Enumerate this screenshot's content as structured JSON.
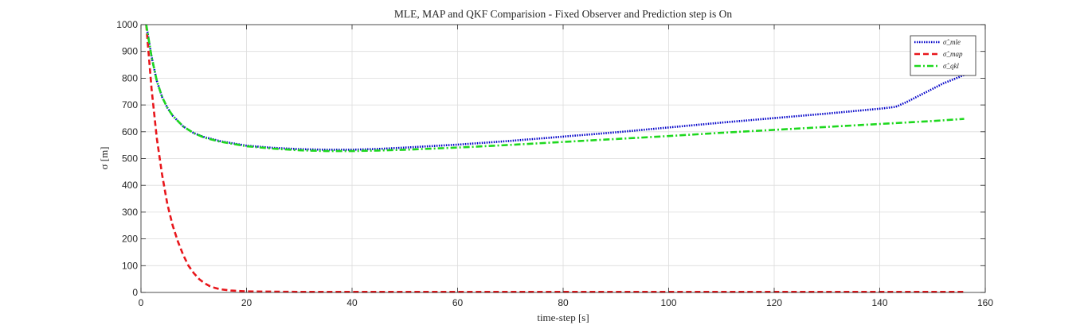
{
  "chart_data": {
    "type": "line",
    "title": "MLE, MAP and QKF Comparision - Fixed Observer and Prediction step is On",
    "xlabel": "time-step [s]",
    "ylabel": "σ [m]",
    "xlim": [
      0,
      160
    ],
    "ylim": [
      0,
      1000
    ],
    "xticks": [
      "0",
      "20",
      "40",
      "60",
      "80",
      "100",
      "120",
      "140",
      "160"
    ],
    "yticks": [
      "0",
      "100",
      "200",
      "300",
      "400",
      "500",
      "600",
      "700",
      "800",
      "900",
      "1000"
    ],
    "grid": true,
    "legend_position": "top-right",
    "series": [
      {
        "name": "σ̂_mle",
        "color": "#0000c8",
        "style": "dotted",
        "x": [
          1,
          2,
          3,
          4,
          5,
          6,
          8,
          10,
          12,
          15,
          20,
          25,
          30,
          35,
          40,
          45,
          50,
          60,
          70,
          80,
          90,
          100,
          110,
          120,
          130,
          140,
          143,
          145,
          148,
          152,
          156
        ],
        "y": [
          1000,
          880,
          790,
          730,
          690,
          660,
          620,
          595,
          580,
          565,
          548,
          540,
          535,
          533,
          533,
          536,
          541,
          552,
          566,
          582,
          598,
          616,
          634,
          651,
          668,
          686,
          693,
          710,
          740,
          780,
          812
        ]
      },
      {
        "name": "σ̂_map",
        "color": "#e8161b",
        "style": "dashed",
        "x": [
          1,
          2,
          3,
          4,
          5,
          6,
          7,
          8,
          9,
          10,
          11,
          12,
          13,
          14,
          15,
          17,
          20,
          25,
          30,
          40,
          60,
          80,
          100,
          120,
          140,
          156
        ],
        "y": [
          1000,
          760,
          575,
          440,
          330,
          250,
          190,
          140,
          100,
          72,
          50,
          35,
          24,
          17,
          12,
          7,
          4,
          3,
          2,
          2,
          2,
          2,
          2,
          2,
          2,
          2
        ]
      },
      {
        "name": "σ̂_qkl",
        "color": "#1ed81e",
        "style": "dashdot",
        "x": [
          1,
          2,
          3,
          4,
          5,
          6,
          8,
          10,
          12,
          15,
          20,
          25,
          30,
          35,
          40,
          45,
          50,
          60,
          70,
          80,
          90,
          100,
          110,
          120,
          130,
          140,
          150,
          156
        ],
        "y": [
          1000,
          880,
          790,
          730,
          690,
          660,
          620,
          595,
          578,
          563,
          546,
          537,
          531,
          528,
          528,
          530,
          533,
          541,
          551,
          562,
          573,
          584,
          596,
          607,
          618,
          629,
          640,
          648
        ]
      }
    ]
  }
}
